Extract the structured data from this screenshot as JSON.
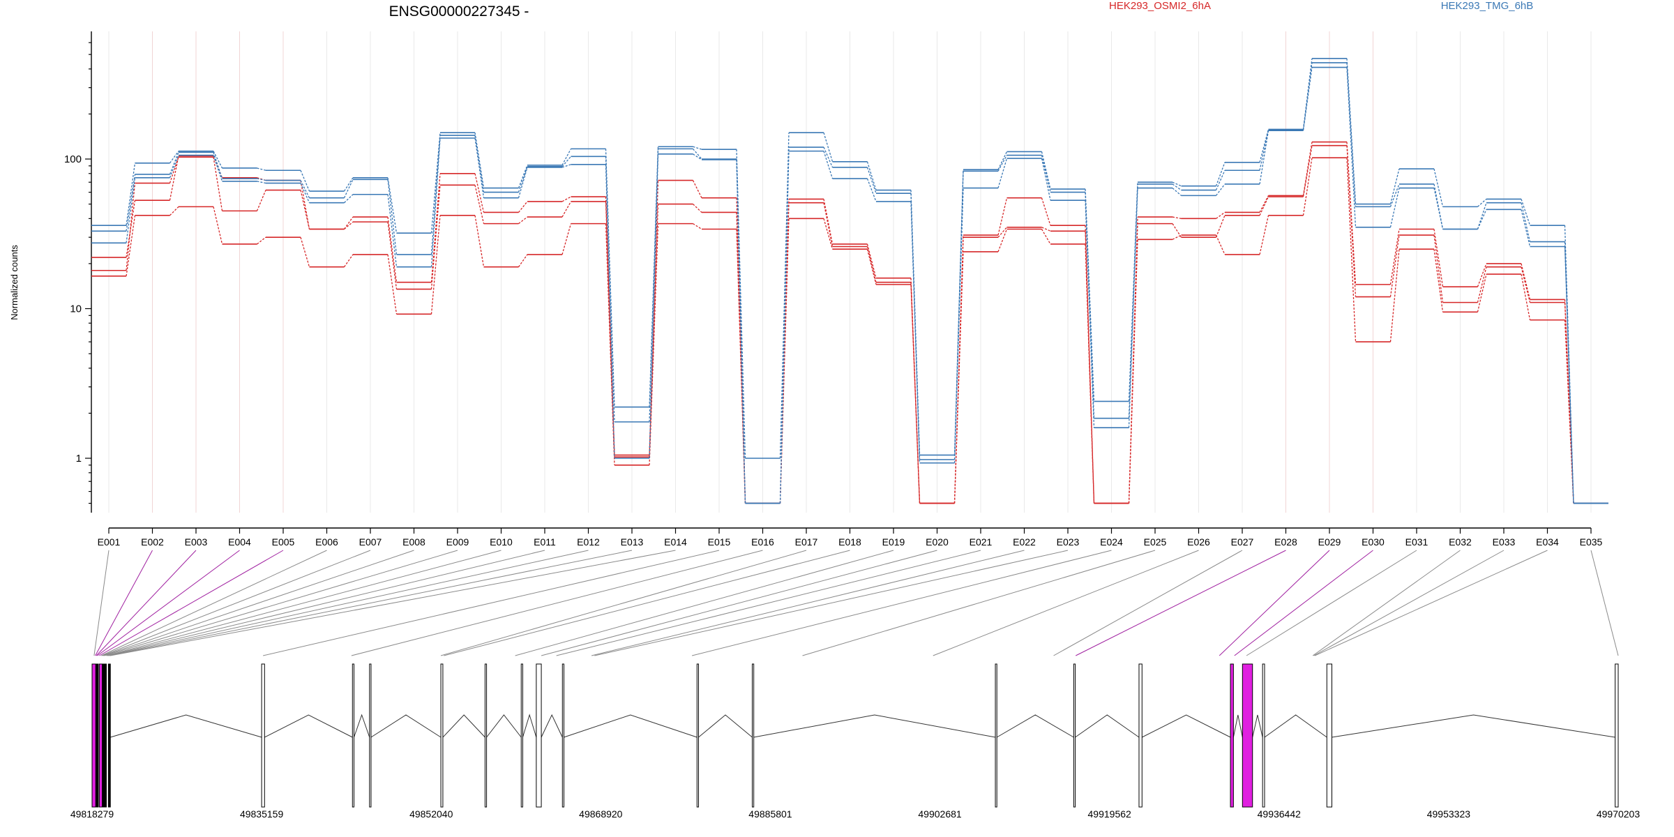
{
  "chart_data": {
    "type": "line",
    "title": "ENSG00000227345 -",
    "ylabel": "Normalized counts",
    "y_scale": "log",
    "y_ticks": [
      1,
      10,
      100
    ],
    "y_tick_labels": [
      "1",
      "10",
      "100"
    ],
    "ylim": [
      0.5,
      600
    ],
    "grid": "vertical gridlines at each exon",
    "categories": [
      "E001",
      "E002",
      "E003",
      "E004",
      "E005",
      "E006",
      "E007",
      "E008",
      "E009",
      "E010",
      "E011",
      "E012",
      "E013",
      "E014",
      "E015",
      "E016",
      "E017",
      "E018",
      "E019",
      "E020",
      "E021",
      "E022",
      "E023",
      "E024",
      "E025",
      "E026",
      "E027",
      "E028",
      "E029",
      "E030",
      "E031",
      "E032",
      "E033",
      "E034",
      "E035"
    ],
    "legend": [
      {
        "label": "HEK293_OSMI2_6hA",
        "color": "#d62728"
      },
      {
        "label": "HEK293_TMG_6hB",
        "color": "#3a78b5"
      }
    ],
    "series": [
      {
        "group": "HEK293_OSMI2_6hA",
        "color": "#d62728",
        "values": [
          22,
          53,
          105,
          75,
          72,
          34,
          41,
          15,
          80,
          44,
          52,
          56,
          1.05,
          72,
          55,
          0.5,
          54,
          27,
          16,
          0.5,
          31,
          55,
          36,
          0.5,
          41,
          40,
          44,
          57,
          130,
          14.5,
          34,
          14,
          20,
          11.5,
          0.5
        ]
      },
      {
        "group": "HEK293_OSMI2_6hA",
        "color": "#d62728",
        "values": [
          18,
          69,
          103,
          45,
          62,
          34,
          38,
          13.5,
          67,
          37,
          41,
          52,
          1.02,
          50,
          44,
          0.5,
          51,
          26,
          15,
          0.5,
          30,
          35,
          33,
          0.5,
          37,
          30,
          42,
          56,
          123,
          12,
          31,
          11,
          19,
          11,
          0.5
        ]
      },
      {
        "group": "HEK293_OSMI2_6hA",
        "color": "#d62728",
        "values": [
          16.5,
          42,
          48,
          27,
          30,
          19,
          23,
          9.2,
          42,
          19,
          23,
          37,
          0.9,
          37,
          34,
          0.5,
          40,
          25,
          14.5,
          0.5,
          24,
          34,
          27,
          0.5,
          29,
          31,
          23,
          42,
          102,
          6,
          25,
          9.5,
          17,
          8.4,
          0.5
        ]
      },
      {
        "group": "HEK293_TMG_6hB",
        "color": "#3a78b5",
        "values": [
          36,
          94,
          113,
          87,
          84,
          61,
          75,
          32,
          150,
          64,
          91,
          117,
          2.2,
          121,
          116,
          1.0,
          150,
          96,
          62,
          1.05,
          85,
          112,
          63,
          2.4,
          70,
          66,
          95,
          158,
          470,
          50,
          86,
          48,
          54,
          36,
          0.5
        ]
      },
      {
        "group": "HEK293_TMG_6hB",
        "color": "#3a78b5",
        "values": [
          33,
          79,
          111,
          74,
          72,
          55,
          73,
          23,
          144,
          60,
          89,
          104,
          1.75,
          117,
          100,
          0.5,
          120,
          88,
          59,
          0.98,
          83,
          106,
          60,
          1.85,
          68,
          62,
          84,
          157,
          440,
          48,
          68,
          34,
          51,
          28,
          0.5
        ]
      },
      {
        "group": "HEK293_TMG_6hB",
        "color": "#3a78b5",
        "values": [
          27.5,
          75,
          106,
          71,
          69,
          51,
          58,
          19,
          138,
          55,
          88,
          92,
          1.0,
          108,
          99,
          0.5,
          113,
          74,
          52,
          0.93,
          64,
          101,
          53,
          1.6,
          64,
          57,
          68,
          155,
          410,
          35,
          64,
          34,
          46,
          26,
          0.5
        ]
      }
    ],
    "exon_highlight": [
      "E002",
      "E003",
      "E004",
      "E005",
      "E028",
      "E029",
      "E030"
    ],
    "genomic_axis": {
      "tick_labels": [
        "49818279",
        "49835159",
        "49852040",
        "49868920",
        "49885801",
        "49902681",
        "49919562",
        "49936442",
        "49953323",
        "49970203"
      ],
      "start": 49818279,
      "end": 49970203
    }
  }
}
